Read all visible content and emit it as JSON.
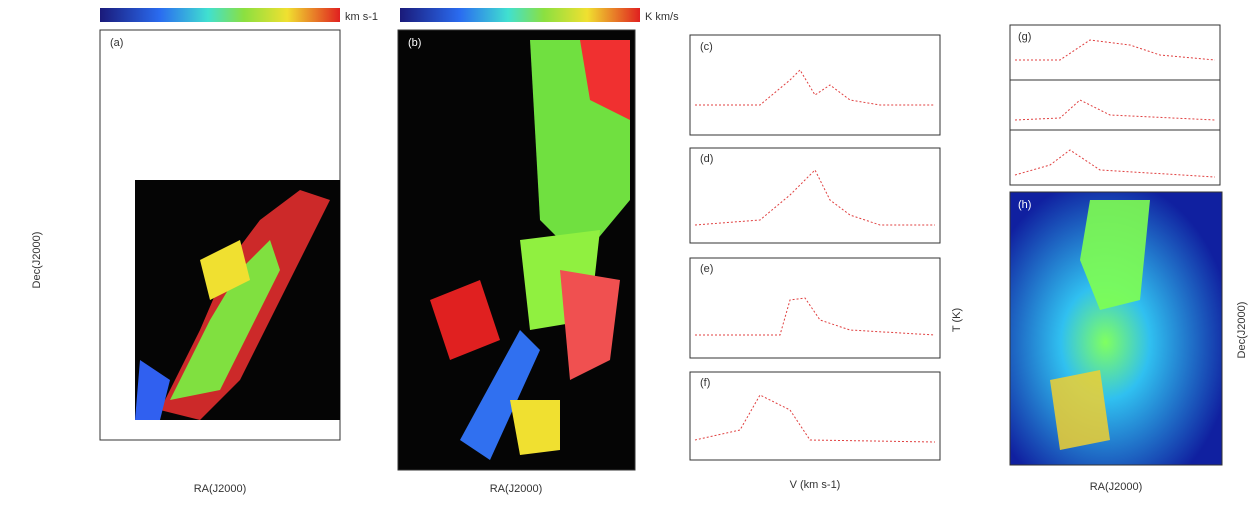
{
  "figure": {
    "colorbar_left": {
      "label": "km s-1"
    },
    "colorbar_mid": {
      "label": "K km/s"
    },
    "panel_a": {
      "tag": "(a)",
      "xlabel": "RA(J2000)",
      "ylabel": "Dec(J2000)"
    },
    "panel_b": {
      "tag": "(b)",
      "xlabel": "RA(J2000)"
    },
    "spectra": {
      "tags": [
        "(c)",
        "(d)",
        "(e)",
        "(f)"
      ],
      "xlabel": "V (km s-1)",
      "ylabel": "T (K)"
    },
    "panel_g": {
      "tag": "(g)"
    },
    "panel_h": {
      "tag": "(h)",
      "xlabel": "RA(J2000)",
      "ylabel": "Dec(J2000)"
    }
  }
}
